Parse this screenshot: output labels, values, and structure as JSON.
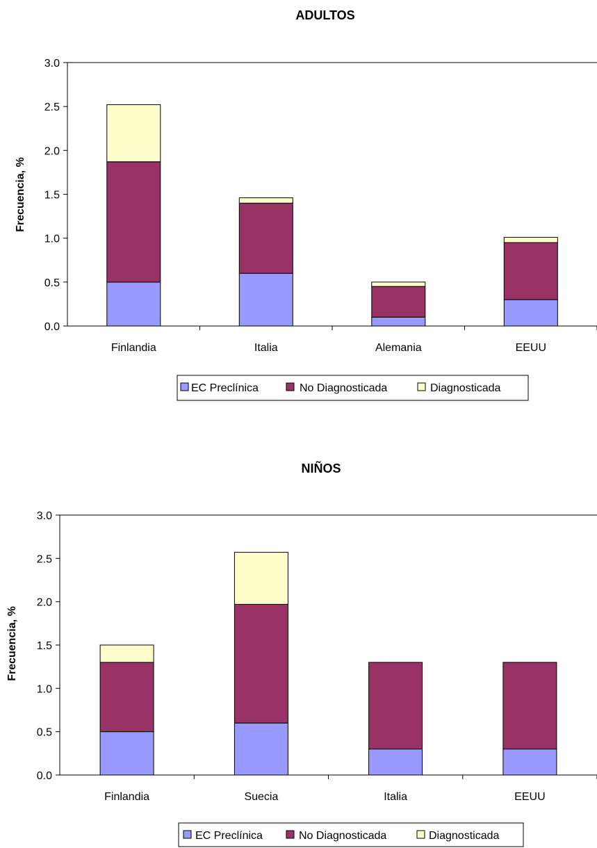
{
  "chart_data": [
    {
      "type": "bar",
      "stacked": true,
      "title": "ADULTOS",
      "ylabel": "Frecuencia, %",
      "ylim": [
        0,
        3.0
      ],
      "yticks": [
        "0.0",
        "0.5",
        "1.0",
        "1.5",
        "2.0",
        "2.5",
        "3.0"
      ],
      "categories": [
        "Finlandia",
        "Italia",
        "Alemania",
        "EEUU"
      ],
      "series": [
        {
          "name": "EC Preclínica",
          "color": "#9999ff",
          "values": [
            0.5,
            0.6,
            0.1,
            0.3
          ]
        },
        {
          "name": "No Diagnosticada",
          "color": "#993366",
          "values": [
            1.37,
            0.8,
            0.35,
            0.65
          ]
        },
        {
          "name": "Diagnosticada",
          "color": "#ffffcc",
          "values": [
            0.65,
            0.06,
            0.05,
            0.06
          ]
        }
      ],
      "legend": "bottom",
      "grid": false
    },
    {
      "type": "bar",
      "stacked": true,
      "title": "NIÑOS",
      "ylabel": "Frecuencia, %",
      "ylim": [
        0,
        3.0
      ],
      "yticks": [
        "0.0",
        "0.5",
        "1.0",
        "1.5",
        "2.0",
        "2.5",
        "3.0"
      ],
      "categories": [
        "Finlandia",
        "Suecia",
        "Italia",
        "EEUU"
      ],
      "series": [
        {
          "name": "EC Preclínica",
          "color": "#9999ff",
          "values": [
            0.5,
            0.6,
            0.3,
            0.3
          ]
        },
        {
          "name": "No Diagnosticada",
          "color": "#993366",
          "values": [
            0.8,
            1.37,
            1.0,
            1.0
          ]
        },
        {
          "name": "Diagnosticada",
          "color": "#ffffcc",
          "values": [
            0.2,
            0.6,
            0.0,
            0.0
          ]
        }
      ],
      "legend": "bottom",
      "grid": false
    }
  ]
}
